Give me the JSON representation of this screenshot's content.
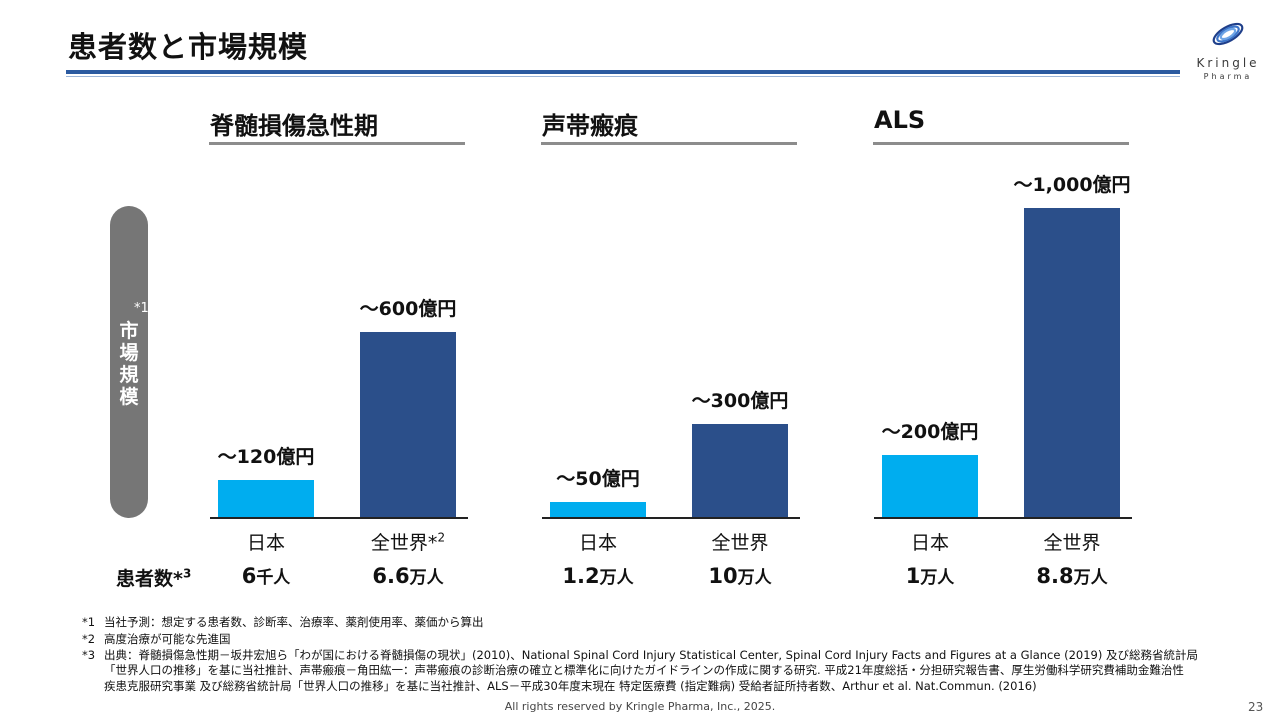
{
  "title": "患者数と市場規模",
  "logo": {
    "word": "Kringle",
    "sub": "Pharma",
    "icon": "kringle-swirl-icon"
  },
  "axis_label": {
    "note": "*1",
    "text": "市場規模"
  },
  "patients_header": {
    "text": "患者数*",
    "sup": "3"
  },
  "colors": {
    "japan": "#00adef",
    "world": "#2b4f8a",
    "rule": "#2b5aa0"
  },
  "chart_data": {
    "type": "bar",
    "groups": [
      {
        "title": "脊髄損傷急性期",
        "categories": [
          "日本",
          "全世界*2"
        ],
        "values": [
          120,
          600
        ],
        "value_labels": [
          "～120億円",
          "～600億円"
        ],
        "patients": [
          {
            "num": "6",
            "unit": "千人"
          },
          {
            "num": "6.6",
            "unit": "万人"
          }
        ]
      },
      {
        "title": "声帯瘢痕",
        "categories": [
          "日本",
          "全世界"
        ],
        "values": [
          50,
          300
        ],
        "value_labels": [
          "～50億円",
          "～300億円"
        ],
        "patients": [
          {
            "num": "1.2",
            "unit": "万人"
          },
          {
            "num": "10",
            "unit": "万人"
          }
        ]
      },
      {
        "title": "ALS",
        "categories": [
          "日本",
          "全世界"
        ],
        "values": [
          200,
          1000
        ],
        "value_labels": [
          "～200億円",
          "～1,000億円"
        ],
        "patients": [
          {
            "num": "1",
            "unit": "万人"
          },
          {
            "num": "8.8",
            "unit": "万人"
          }
        ]
      }
    ],
    "unit": "億円",
    "ylim": [
      0,
      1000
    ]
  },
  "footnotes": [
    {
      "num": "*1",
      "text": "当社予測：想定する患者数、診断率、治療率、薬剤使用率、薬価から算出"
    },
    {
      "num": "*2",
      "text": "高度治療が可能な先進国"
    },
    {
      "num": "*3",
      "text": "出典：脊髄損傷急性期－坂井宏旭ら「わが国における脊髄損傷の現状」(2010)、National Spinal Cord Injury Statistical Center, Spinal Cord Injury Facts and Figures at a Glance (2019) 及び総務省統計局"
    }
  ],
  "footnote_cont": [
    "「世界人口の推移」を基に当社推計、声帯瘢痕－角田紘一：声帯瘢痕の診断治療の確立と標準化に向けたガイドラインの作成に関する研究. 平成21年度総括・分担研究報告書、厚生労働科学研究費補助金難治性",
    "疾患克服研究事業 及び総務省統計局「世界人口の推移」を基に当社推計、ALS－平成30年度末現在 特定医療費 (指定難病) 受給者証所持者数、Arthur et al. Nat.Commun. (2016)"
  ],
  "footer": "All rights reserved by Kringle Pharma, Inc., 2025.",
  "page_number": "23"
}
